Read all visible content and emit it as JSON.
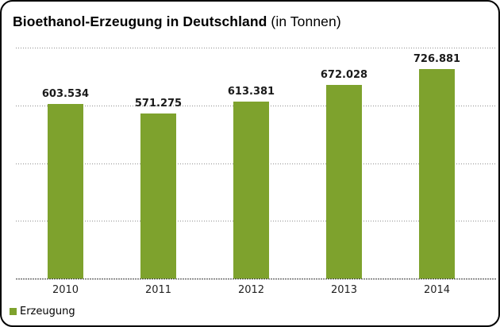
{
  "title": {
    "main": "Bioethanol-Erzeugung in Deutschland",
    "suffix": " (in Tonnen)"
  },
  "legend": {
    "label": "Erzeugung"
  },
  "colors": {
    "bar": "#7ea22d",
    "grid": "#8f8f8f",
    "axis": "#3c3c3c",
    "frame_border": "#000000",
    "text": "#000000"
  },
  "chart_data": {
    "type": "bar",
    "title": "Bioethanol-Erzeugung in Deutschland (in Tonnen)",
    "categories": [
      "2010",
      "2011",
      "2012",
      "2013",
      "2014"
    ],
    "series": [
      {
        "name": "Erzeugung",
        "values": [
          603534,
          571275,
          613381,
          672028,
          726881
        ],
        "value_labels": [
          "603.534",
          "571.275",
          "613.381",
          "672.028",
          "726.881"
        ]
      }
    ],
    "xlabel": "",
    "ylabel": "",
    "unit": "Tonnen",
    "ylim": [
      0,
      800000
    ],
    "gridline_values": [
      800000,
      600000,
      400000,
      200000
    ],
    "grid": "horizontal-dotted",
    "y_axis_labels_visible": false,
    "legend_position": "bottom-left"
  }
}
